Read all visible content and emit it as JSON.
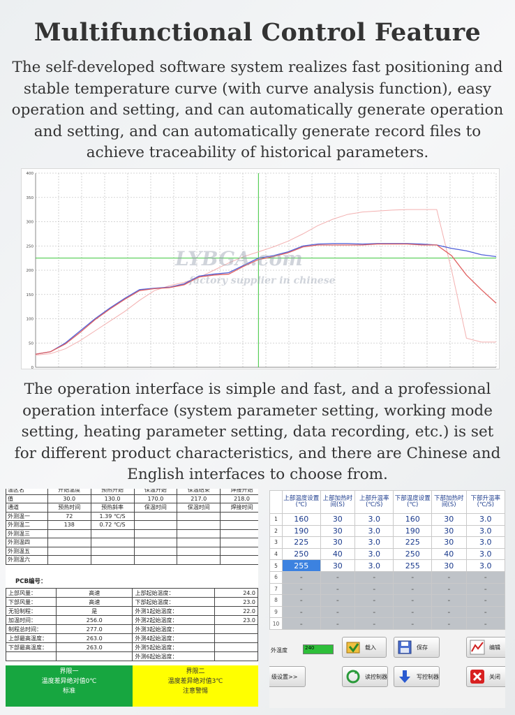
{
  "title": "Multifunctional Control Feature",
  "paragraph1": "The self-developed software system realizes fast positioning and stable temperature curve (with curve analysis function), easy operation and setting, and can automatically generate operation and setting, and can automatically generate record files to achieve traceability of historical parameters.",
  "paragraph2": "The operation interface is simple and fast, and a professional operation interface (system parameter setting, working mode setting, heating parameter setting, data recording, etc.) is set for different product characteristics, and there are Chinese and English interfaces to choose from.",
  "watermark": {
    "brand": "LYBGA.com",
    "tagline": "factory supplier in chinese"
  },
  "chart_data": {
    "type": "line",
    "ylim": [
      0,
      400
    ],
    "yticks": [
      0,
      50,
      100,
      150,
      200,
      250,
      300,
      350,
      400
    ],
    "grid": true,
    "x": [
      0,
      20,
      40,
      60,
      80,
      100,
      120,
      140,
      160,
      180,
      200,
      220,
      240,
      260,
      280,
      300,
      320,
      340,
      360,
      380,
      400,
      420,
      440,
      460,
      480,
      500,
      520,
      540,
      560,
      580,
      600,
      620
    ],
    "series": [
      {
        "color": "#f3b0b0",
        "values": [
          25,
          28,
          38,
          55,
          75,
          95,
          115,
          138,
          158,
          168,
          175,
          185,
          200,
          215,
          228,
          238,
          248,
          260,
          275,
          292,
          305,
          315,
          320,
          322,
          324,
          325,
          325,
          325,
          200,
          60,
          52,
          52
        ]
      },
      {
        "color": "#5060d8",
        "values": [
          27,
          32,
          50,
          75,
          100,
          122,
          142,
          160,
          163,
          165,
          172,
          188,
          192,
          195,
          210,
          225,
          230,
          238,
          250,
          254,
          255,
          255,
          254,
          255,
          255,
          255,
          254,
          252,
          245,
          240,
          232,
          228
        ]
      },
      {
        "color": "#e06060",
        "values": [
          27,
          32,
          48,
          72,
          98,
          120,
          140,
          158,
          162,
          164,
          170,
          186,
          190,
          192,
          208,
          222,
          228,
          236,
          248,
          252,
          252,
          252,
          252,
          254,
          254,
          254,
          252,
          252,
          230,
          190,
          160,
          132
        ]
      }
    ],
    "crosshair": {
      "x": 300,
      "y": 225
    }
  },
  "left_panel": {
    "top_rows": [
      [
        "温区名",
        "开始温度",
        "预热开始",
        "保温开始",
        "保温结束",
        "焊接开始"
      ],
      [
        "值",
        "30.0",
        "130.0",
        "170.0",
        "217.0",
        "218.0"
      ],
      [
        "通道",
        "预热时间",
        "预热斜率",
        "保温时间",
        "保温时间",
        "焊接时间"
      ],
      [
        "外测温一",
        "72",
        "1.39 ℃/S",
        "",
        "",
        ""
      ],
      [
        "外测温二",
        "138",
        "0.72 ℃/S",
        "",
        "",
        ""
      ],
      [
        "外测温三",
        "",
        "",
        "",
        "",
        ""
      ],
      [
        "外测温四",
        "",
        "",
        "",
        "",
        ""
      ],
      [
        "外测温五",
        "",
        "",
        "",
        "",
        ""
      ],
      [
        "外测温六",
        "",
        "",
        "",
        "",
        ""
      ]
    ],
    "pcb_label": "PCB编号：",
    "info_rows": [
      [
        "上部风量：",
        "高速",
        "上部起始温度：",
        "24.0"
      ],
      [
        "下部风量：",
        "高速",
        "下部起始温度：",
        "23.0"
      ],
      [
        "无铅制程：",
        "是",
        "外测1起始温度：",
        "22.0"
      ],
      [
        "加温时间：",
        "256.0",
        "外测2起始温度：",
        "23.0"
      ],
      [
        "制程总时间：",
        "277.0",
        "外测3起始温度：",
        ""
      ],
      [
        "上部最高温度：",
        "263.0",
        "外测4起始温度：",
        ""
      ],
      [
        "下部最高温度：",
        "263.0",
        "外测5起始温度：",
        ""
      ],
      [
        "",
        "",
        "外测6起始温度：",
        ""
      ]
    ],
    "limit1": {
      "title": "界限一",
      "text": "温度差异绝对值0℃",
      "sub": "标准"
    },
    "limit2": {
      "title": "界限二",
      "text": "温度差异绝对值3℃",
      "sub": "注意警惕"
    }
  },
  "right_panel": {
    "headers": [
      "上部温度设置(℃)",
      "上部加热时间(S)",
      "上部升温率(℃/S)",
      "下部温度设置(℃)",
      "下部加热时间(S)",
      "下部升温率(℃/S)"
    ],
    "rows": [
      [
        "1",
        "160",
        "30",
        "3.0",
        "160",
        "30",
        "3.0"
      ],
      [
        "2",
        "190",
        "30",
        "3.0",
        "190",
        "30",
        "3.0"
      ],
      [
        "3",
        "225",
        "30",
        "3.0",
        "225",
        "30",
        "3.0"
      ],
      [
        "4",
        "250",
        "40",
        "3.0",
        "250",
        "40",
        "3.0"
      ],
      [
        "5",
        "255",
        "30",
        "3.0",
        "255",
        "30",
        "3.0"
      ],
      [
        "6",
        "-",
        "-",
        "-",
        "-",
        "-",
        "-"
      ],
      [
        "7",
        "-",
        "-",
        "-",
        "-",
        "-",
        "-"
      ],
      [
        "8",
        "-",
        "-",
        "-",
        "-",
        "-",
        "-"
      ],
      [
        "9",
        "-",
        "-",
        "-",
        "-",
        "-",
        "-"
      ],
      [
        "10",
        "-",
        "-",
        "-",
        "-",
        "-",
        "-"
      ]
    ],
    "temp_label": "外温度",
    "temp_value": "240",
    "buttons": {
      "load": "载入",
      "save": "保存",
      "edit": "编辑",
      "settings": "级设置>>",
      "read": "读控制器",
      "write": "写控制器",
      "close": "关闭"
    }
  }
}
